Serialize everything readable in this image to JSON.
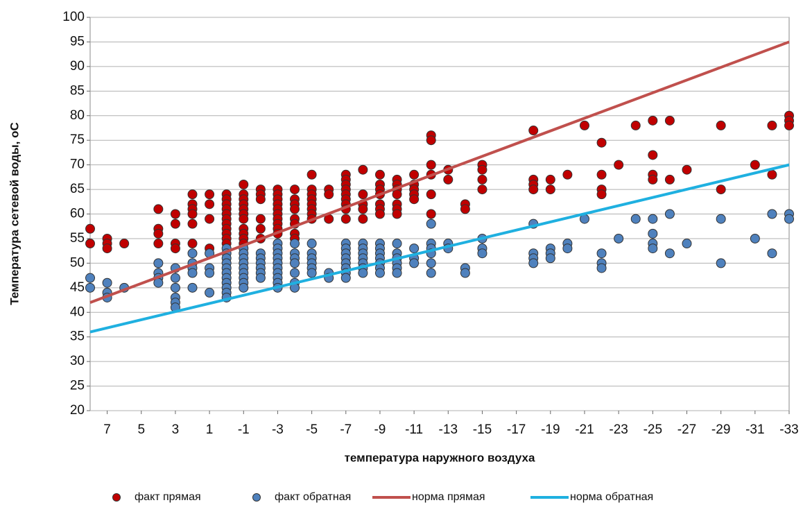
{
  "chart_data": {
    "type": "scatter",
    "xlabel": "температура наружного воздуха",
    "ylabel": "Температура сетевой воды, оС",
    "xlim": [
      8,
      -33
    ],
    "ylim": [
      20,
      100
    ],
    "xticks": [
      7,
      5,
      3,
      1,
      -1,
      -3,
      -5,
      -7,
      -9,
      -11,
      -13,
      -15,
      -17,
      -19,
      -21,
      -23,
      -25,
      -27,
      -29,
      -31,
      -33
    ],
    "yticks": [
      20,
      25,
      30,
      35,
      40,
      45,
      50,
      55,
      60,
      65,
      70,
      75,
      80,
      85,
      90,
      95,
      100
    ],
    "grid": true,
    "legend": "bottom",
    "series": [
      {
        "name": "факт прямая",
        "type": "scatter",
        "color": "#c00000",
        "x": [
          8,
          8,
          7,
          7,
          7,
          6,
          4,
          4,
          4,
          4,
          3,
          3,
          3,
          3,
          2,
          2,
          2,
          2,
          2,
          2,
          1,
          1,
          1,
          1,
          0,
          0,
          0,
          0,
          0,
          0,
          0,
          0,
          0,
          0,
          0,
          -1,
          -1,
          -1,
          -1,
          -1,
          -1,
          -1,
          -1,
          -1,
          -1,
          -1,
          -2,
          -2,
          -2,
          -2,
          -2,
          -2,
          -3,
          -3,
          -3,
          -3,
          -3,
          -3,
          -3,
          -3,
          -3,
          -3,
          -4,
          -4,
          -4,
          -4,
          -4,
          -4,
          -4,
          -4,
          -5,
          -5,
          -5,
          -5,
          -5,
          -5,
          -5,
          -5,
          -6,
          -6,
          -6,
          -7,
          -7,
          -7,
          -7,
          -7,
          -7,
          -7,
          -7,
          -7,
          -8,
          -8,
          -8,
          -8,
          -8,
          -9,
          -9,
          -9,
          -9,
          -9,
          -9,
          -9,
          -10,
          -10,
          -10,
          -10,
          -10,
          -10,
          -10,
          -11,
          -11,
          -11,
          -11,
          -11,
          -12,
          -12,
          -12,
          -12,
          -12,
          -12,
          -13,
          -13,
          -14,
          -14,
          -15,
          -15,
          -15,
          -15,
          -18,
          -18,
          -18,
          -18,
          -19,
          -19,
          -20,
          -21,
          -22,
          -22,
          -22,
          -22,
          -23,
          -24,
          -25,
          -25,
          -25,
          -25,
          -26,
          -26,
          -27,
          -29,
          -29,
          -31,
          -32,
          -32,
          -33,
          -33,
          -33
        ],
        "values": [
          57,
          54,
          55,
          54,
          53,
          54,
          61,
          57,
          56,
          54,
          60,
          58,
          54,
          53,
          64,
          62,
          61,
          60,
          58,
          54,
          64,
          62,
          59,
          53,
          64,
          63,
          62,
          61,
          60,
          59,
          58,
          57,
          56,
          55,
          54,
          66,
          64,
          63,
          62,
          61,
          60,
          59,
          57,
          56,
          55,
          54,
          65,
          64,
          63,
          59,
          57,
          55,
          65,
          64,
          63,
          62,
          61,
          60,
          59,
          58,
          57,
          56,
          65,
          63,
          62,
          61,
          59,
          58,
          56,
          55,
          68,
          65,
          64,
          63,
          62,
          61,
          60,
          59,
          65,
          64,
          59,
          68,
          67,
          66,
          65,
          64,
          63,
          62,
          61,
          59,
          69,
          64,
          62,
          61,
          59,
          68,
          66,
          65,
          64,
          62,
          61,
          60,
          67,
          66,
          65,
          64,
          62,
          61,
          60,
          68,
          66,
          65,
          64,
          63,
          76,
          75,
          70,
          68,
          64,
          60,
          69,
          67,
          62,
          61,
          70,
          69,
          67,
          65,
          77,
          67,
          66,
          65,
          67,
          65,
          68,
          78,
          74.5,
          68,
          65,
          64,
          70,
          78,
          79,
          72,
          68,
          67,
          79,
          67,
          69,
          78,
          65,
          70,
          78,
          68,
          80,
          79,
          78
        ]
      },
      {
        "name": "факт обратная",
        "type": "scatter",
        "color": "#4f81bd",
        "x": [
          8,
          8,
          7,
          7,
          7,
          6,
          4,
          4,
          4,
          4,
          3,
          3,
          3,
          3,
          3,
          3,
          2,
          2,
          2,
          2,
          2,
          1,
          1,
          1,
          1,
          0,
          0,
          0,
          0,
          0,
          0,
          0,
          0,
          0,
          0,
          0,
          -1,
          -1,
          -1,
          -1,
          -1,
          -1,
          -1,
          -1,
          -1,
          -2,
          -2,
          -2,
          -2,
          -2,
          -2,
          -3,
          -3,
          -3,
          -3,
          -3,
          -3,
          -3,
          -3,
          -3,
          -3,
          -4,
          -4,
          -4,
          -4,
          -4,
          -4,
          -4,
          -5,
          -5,
          -5,
          -5,
          -5,
          -5,
          -6,
          -6,
          -7,
          -7,
          -7,
          -7,
          -7,
          -7,
          -7,
          -7,
          -8,
          -8,
          -8,
          -8,
          -8,
          -8,
          -8,
          -9,
          -9,
          -9,
          -9,
          -9,
          -9,
          -9,
          -10,
          -10,
          -10,
          -10,
          -10,
          -10,
          -11,
          -11,
          -11,
          -12,
          -12,
          -12,
          -12,
          -12,
          -12,
          -13,
          -13,
          -14,
          -14,
          -15,
          -15,
          -15,
          -18,
          -18,
          -18,
          -18,
          -19,
          -19,
          -19,
          -20,
          -20,
          -21,
          -22,
          -22,
          -22,
          -23,
          -24,
          -25,
          -25,
          -25,
          -25,
          -26,
          -26,
          -27,
          -29,
          -29,
          -31,
          -32,
          -32,
          -33,
          -33
        ],
        "values": [
          47,
          45,
          46,
          44,
          43,
          45,
          50,
          48,
          47,
          46,
          49,
          47,
          45,
          43,
          42,
          41,
          52,
          50,
          49,
          48,
          45,
          52,
          49,
          48,
          44,
          53,
          52,
          51,
          50,
          49,
          48,
          47,
          46,
          45,
          44,
          43,
          53,
          52,
          51,
          50,
          49,
          48,
          47,
          46,
          45,
          52,
          51,
          50,
          49,
          48,
          47,
          54,
          53,
          52,
          51,
          50,
          49,
          48,
          47,
          46,
          45,
          54,
          52,
          51,
          50,
          48,
          46,
          45,
          54,
          52,
          51,
          50,
          49,
          48,
          48,
          47,
          54,
          53,
          52,
          51,
          50,
          49,
          48,
          47,
          54,
          53,
          52,
          51,
          50,
          49,
          48,
          54,
          53,
          52,
          51,
          50,
          49,
          48,
          54,
          52,
          51,
          50,
          49,
          48,
          53,
          51,
          50,
          58,
          54,
          53,
          52,
          50,
          48,
          54,
          53,
          49,
          48,
          55,
          53,
          52,
          58,
          52,
          51,
          50,
          53,
          52,
          51,
          54,
          53,
          59,
          52,
          50,
          49,
          55,
          59,
          59,
          56,
          54,
          53,
          60,
          52,
          54,
          59,
          50,
          55,
          60,
          52,
          60,
          59
        ]
      },
      {
        "name": "норма прямая",
        "type": "line",
        "color": "#c0504d",
        "x": [
          8,
          -33
        ],
        "values": [
          42,
          95
        ]
      },
      {
        "name": "норма обратная",
        "type": "line",
        "color": "#1fb0e0",
        "x": [
          8,
          -33
        ],
        "values": [
          36,
          70
        ]
      }
    ]
  }
}
